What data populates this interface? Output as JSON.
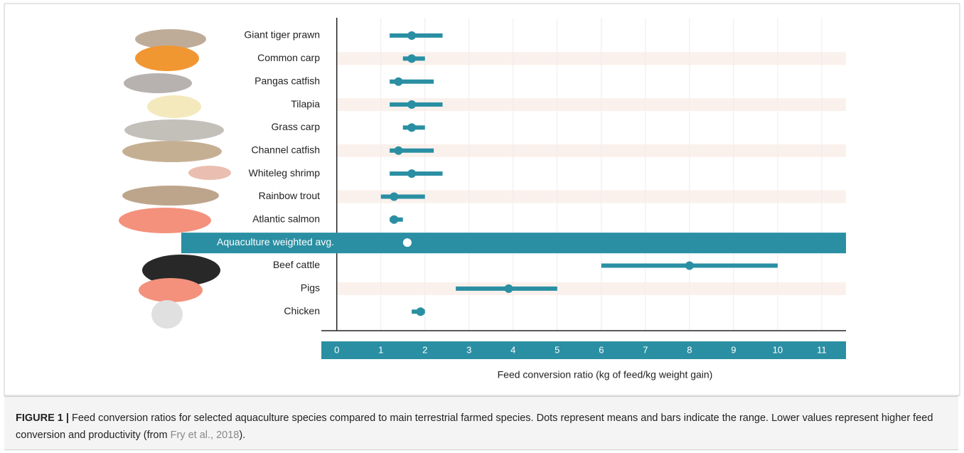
{
  "chart_data": {
    "type": "range-dot",
    "categories": [
      "Giant tiger prawn",
      "Common carp",
      "Pangas catfish",
      "Tilapia",
      "Grass carp",
      "Channel catfish",
      "Whiteleg shrimp",
      "Rainbow trout",
      "Atlantic salmon",
      "Aquaculture weighted avg.",
      "Beef cattle",
      "Pigs",
      "Chicken"
    ],
    "values": [
      1.7,
      1.7,
      1.4,
      1.7,
      1.7,
      1.4,
      1.7,
      1.3,
      1.3,
      1.6,
      8.0,
      3.9,
      1.9
    ],
    "min": [
      1.2,
      1.5,
      1.2,
      1.2,
      1.5,
      1.2,
      1.2,
      1.0,
      1.2,
      null,
      6.0,
      2.7,
      1.7
    ],
    "max": [
      2.4,
      2.0,
      2.2,
      2.4,
      2.0,
      2.2,
      2.4,
      2.0,
      1.5,
      null,
      10.0,
      5.0,
      2.0
    ],
    "color": "#2a8fa3",
    "xlabel": "Feed conversion ratio (kg of feed/kg weight gain)",
    "xlim": [
      -0.35,
      11.55
    ],
    "xticks": [
      0,
      1,
      2,
      3,
      4,
      5,
      6,
      7,
      8,
      9,
      10,
      11
    ],
    "grid": true
  },
  "caption": {
    "label": "FIGURE 1 |",
    "text": "Feed conversion ratios for selected aquaculture species compared to main terrestrial farmed species. Dots represent means and bars indicate the range. Lower values represent higher feed conversion and productivity (from",
    "cite": "Fry et al., 2018",
    "end": ")."
  }
}
